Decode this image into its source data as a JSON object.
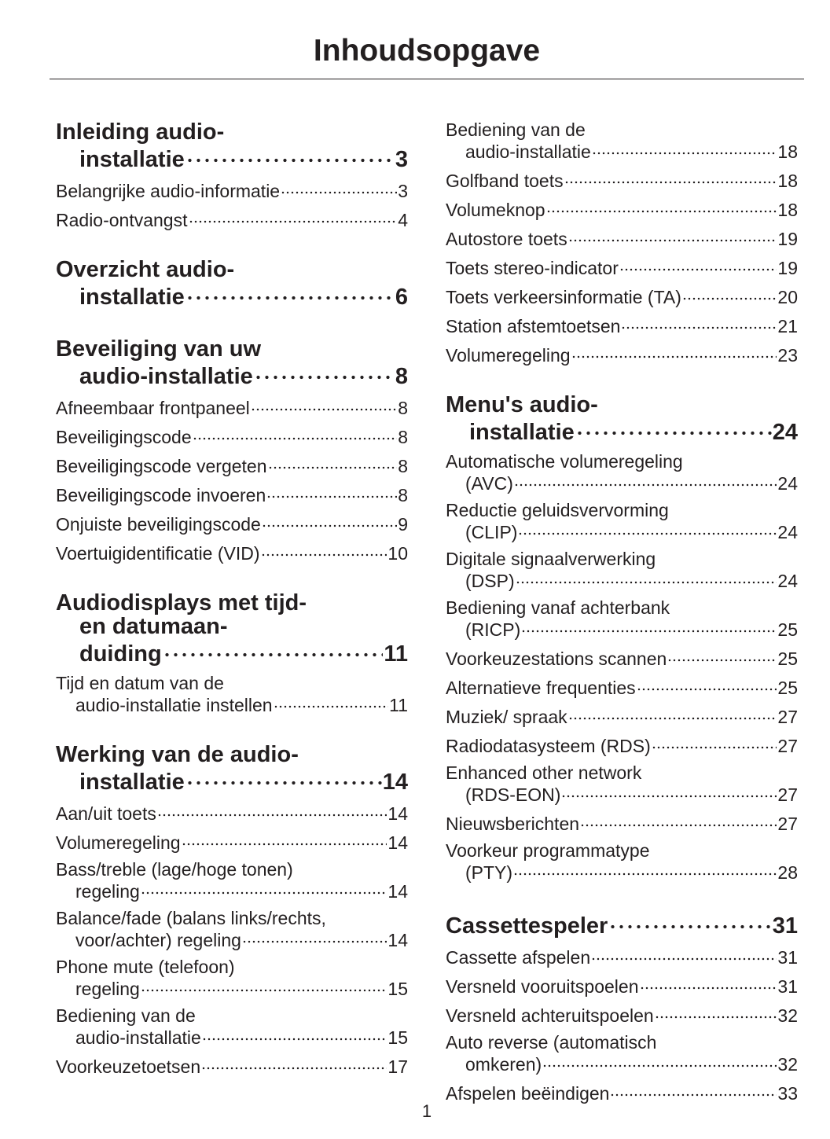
{
  "title": "Inhoudsopgave",
  "columns": [
    {
      "sections": [
        {
          "heading": {
            "lines": [
              "Inleiding audio-",
              "installatie"
            ],
            "page": "3"
          },
          "entries": [
            {
              "lines": [
                "Belangrijke audio-informatie"
              ],
              "page": "3"
            },
            {
              "lines": [
                "Radio-ontvangst"
              ],
              "page": "4"
            }
          ]
        },
        {
          "heading": {
            "lines": [
              "Overzicht audio-",
              "installatie"
            ],
            "page": "6"
          },
          "entries": []
        },
        {
          "heading": {
            "lines": [
              "Beveiliging van uw",
              "audio-installatie"
            ],
            "page": "8"
          },
          "entries": [
            {
              "lines": [
                "Afneembaar frontpaneel"
              ],
              "page": "8"
            },
            {
              "lines": [
                "Beveiligingscode"
              ],
              "page": "8"
            },
            {
              "lines": [
                "Beveiligingscode vergeten"
              ],
              "page": "8"
            },
            {
              "lines": [
                "Beveiligingscode invoeren"
              ],
              "page": "8"
            },
            {
              "lines": [
                "Onjuiste beveiligingscode"
              ],
              "page": "9"
            },
            {
              "lines": [
                "Voertuigidentificatie (VID)"
              ],
              "page": "10"
            }
          ]
        },
        {
          "heading": {
            "lines": [
              "Audiodisplays met tijd-",
              "en datumaan-",
              "duiding"
            ],
            "page": "11"
          },
          "entries": [
            {
              "lines": [
                "Tijd en datum van de",
                "audio-installatie instellen"
              ],
              "page": "11"
            }
          ]
        },
        {
          "heading": {
            "lines": [
              "Werking van de audio-",
              "installatie"
            ],
            "page": "14"
          },
          "entries": [
            {
              "lines": [
                "Aan/uit toets"
              ],
              "page": "14"
            },
            {
              "lines": [
                "Volumeregeling"
              ],
              "page": "14"
            },
            {
              "lines": [
                "Bass/treble (lage/hoge tonen)",
                "regeling"
              ],
              "page": "14"
            },
            {
              "lines": [
                "Balance/fade (balans links/rechts,",
                "voor/achter) regeling"
              ],
              "page": "14"
            },
            {
              "lines": [
                "Phone mute (telefoon)",
                "regeling"
              ],
              "page": "15"
            },
            {
              "lines": [
                "Bediening van de",
                "audio-installatie"
              ],
              "page": "15"
            },
            {
              "lines": [
                "Voorkeuzetoetsen"
              ],
              "page": "17"
            }
          ]
        }
      ]
    },
    {
      "sections": [
        {
          "entries": [
            {
              "lines": [
                "Bediening van de",
                "audio-installatie"
              ],
              "page": "18"
            },
            {
              "lines": [
                "Golfband toets"
              ],
              "page": "18"
            },
            {
              "lines": [
                "Volumeknop"
              ],
              "page": "18"
            },
            {
              "lines": [
                "Autostore toets"
              ],
              "page": "19"
            },
            {
              "lines": [
                "Toets stereo-indicator"
              ],
              "page": "19"
            },
            {
              "lines": [
                "Toets verkeersinformatie (TA)"
              ],
              "page": "20"
            },
            {
              "lines": [
                "Station afstemtoetsen"
              ],
              "page": "21"
            },
            {
              "lines": [
                "Volumeregeling"
              ],
              "page": "23"
            }
          ]
        },
        {
          "heading": {
            "lines": [
              "Menu's audio-",
              "installatie"
            ],
            "page": "24"
          },
          "entries": [
            {
              "lines": [
                "Automatische volumeregeling",
                "(AVC)"
              ],
              "page": "24"
            },
            {
              "lines": [
                "Reductie geluidsvervorming",
                "(CLIP)"
              ],
              "page": "24"
            },
            {
              "lines": [
                "Digitale signaalverwerking",
                "(DSP)"
              ],
              "page": "24"
            },
            {
              "lines": [
                "Bediening vanaf achterbank",
                "(RICP)"
              ],
              "page": "25"
            },
            {
              "lines": [
                "Voorkeuzestations scannen"
              ],
              "page": "25"
            },
            {
              "lines": [
                "Alternatieve frequenties"
              ],
              "page": "25"
            },
            {
              "lines": [
                "Muziek/ spraak"
              ],
              "page": "27"
            },
            {
              "lines": [
                "Radiodatasysteem (RDS)"
              ],
              "page": "27"
            },
            {
              "lines": [
                "Enhanced other network",
                "(RDS-EON)"
              ],
              "page": "27"
            },
            {
              "lines": [
                "Nieuwsberichten"
              ],
              "page": "27"
            },
            {
              "lines": [
                "Voorkeur programmatype",
                "(PTY)"
              ],
              "page": "28"
            }
          ]
        },
        {
          "heading": {
            "lines": [
              "Cassettespeler"
            ],
            "page": "31"
          },
          "entries": [
            {
              "lines": [
                "Cassette afspelen"
              ],
              "page": "31"
            },
            {
              "lines": [
                "Versneld vooruitspoelen"
              ],
              "page": "31"
            },
            {
              "lines": [
                "Versneld achteruitspoelen"
              ],
              "page": "32"
            },
            {
              "lines": [
                "Auto reverse (automatisch",
                "omkeren)"
              ],
              "page": "32"
            },
            {
              "lines": [
                "Afspelen beëindigen"
              ],
              "page": "33"
            }
          ]
        }
      ]
    }
  ],
  "page_number": "1"
}
